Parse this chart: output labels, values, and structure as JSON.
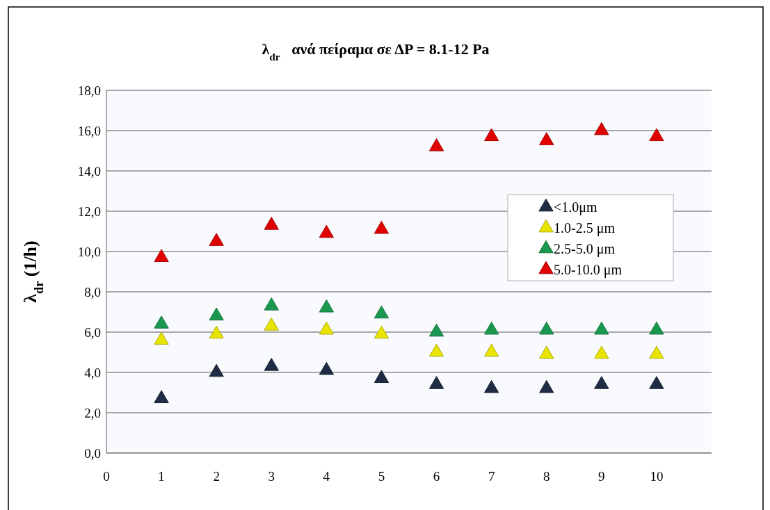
{
  "chart_data": {
    "type": "scatter",
    "title": "λ$_{dr}$   ανά πείραμα σε ΔP = 8.1-12 Pa",
    "ylabel": "λ$_{dr}$ (1/h)",
    "x": [
      1,
      2,
      3,
      4,
      5,
      6,
      7,
      8,
      9,
      10
    ],
    "series": [
      {
        "name": "<1.0μm",
        "color": "#1f2d44",
        "values": [
          2.7,
          4.0,
          4.3,
          4.1,
          3.7,
          3.4,
          3.2,
          3.2,
          3.4,
          3.4
        ]
      },
      {
        "name": "1.0-2.5 μm",
        "color": "#e8e400",
        "values": [
          5.6,
          5.9,
          6.3,
          6.1,
          5.9,
          5.0,
          5.0,
          4.9,
          4.9,
          4.9
        ]
      },
      {
        "name": "2.5-5.0 μm",
        "color": "#1a9850",
        "values": [
          6.4,
          6.8,
          7.3,
          7.2,
          6.9,
          6.0,
          6.1,
          6.1,
          6.1,
          6.1
        ]
      },
      {
        "name": "5.0-10.0 μm",
        "color": "#e00000",
        "values": [
          9.7,
          10.5,
          11.3,
          10.9,
          11.1,
          15.2,
          15.7,
          15.5,
          16.0,
          15.7
        ]
      }
    ],
    "xlim": [
      0,
      11
    ],
    "xticks": [
      0,
      1,
      2,
      3,
      4,
      5,
      6,
      7,
      8,
      9,
      10
    ],
    "ylim": [
      0,
      18
    ],
    "yticks": [
      {
        "value": 0,
        "label": "0,0"
      },
      {
        "value": 2,
        "label": "2,0"
      },
      {
        "value": 4,
        "label": "4,0"
      },
      {
        "value": 6,
        "label": "6,0"
      },
      {
        "value": 8,
        "label": "8,0"
      },
      {
        "value": 10,
        "label": "10,0"
      },
      {
        "value": 12,
        "label": "12,0"
      },
      {
        "value": 14,
        "label": "14,0"
      },
      {
        "value": 16,
        "label": "16,0"
      },
      {
        "value": 18,
        "label": "18,0"
      }
    ],
    "grid": "y",
    "legend": "right",
    "marker": "triangle"
  }
}
